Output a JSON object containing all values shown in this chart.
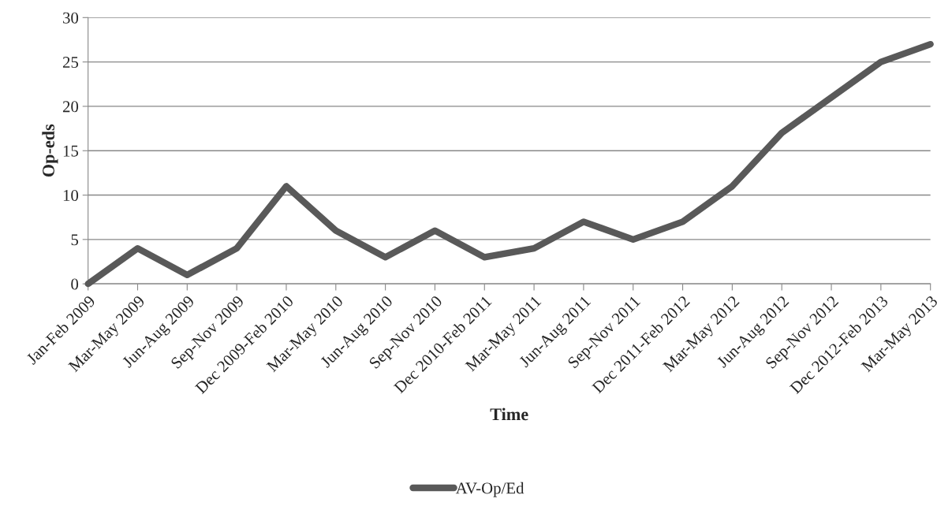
{
  "chart_data": {
    "type": "line",
    "xlabel": "Time",
    "ylabel": "Op-eds",
    "categories": [
      "Jan-Feb 2009",
      "Mar-May 2009",
      "Jun-Aug 2009",
      "Sep-Nov 2009",
      "Dec 2009-Feb 2010",
      "Mar-May 2010",
      "Jun-Aug 2010",
      "Sep-Nov 2010",
      "Dec 2010-Feb 2011",
      "Mar-May 2011",
      "Jun-Aug 2011",
      "Sep-Nov 2011",
      "Dec 2011-Feb 2012",
      "Mar-May 2012",
      "Jun-Aug 2012",
      "Sep-Nov 2012",
      "Dec 2012-Feb 2013",
      "Mar-May 2013"
    ],
    "series": [
      {
        "name": "AV-Op/Ed",
        "color": "#595959",
        "values": [
          0,
          4,
          1,
          4,
          11,
          6,
          3,
          6,
          3,
          4,
          7,
          5,
          7,
          11,
          17,
          21,
          25,
          27
        ]
      }
    ],
    "ylim": [
      0,
      30
    ],
    "yticks": [
      0,
      5,
      10,
      15,
      20,
      25,
      30
    ],
    "grid": "y",
    "legend": "bottom",
    "marker": "none",
    "line_style": "solid"
  }
}
